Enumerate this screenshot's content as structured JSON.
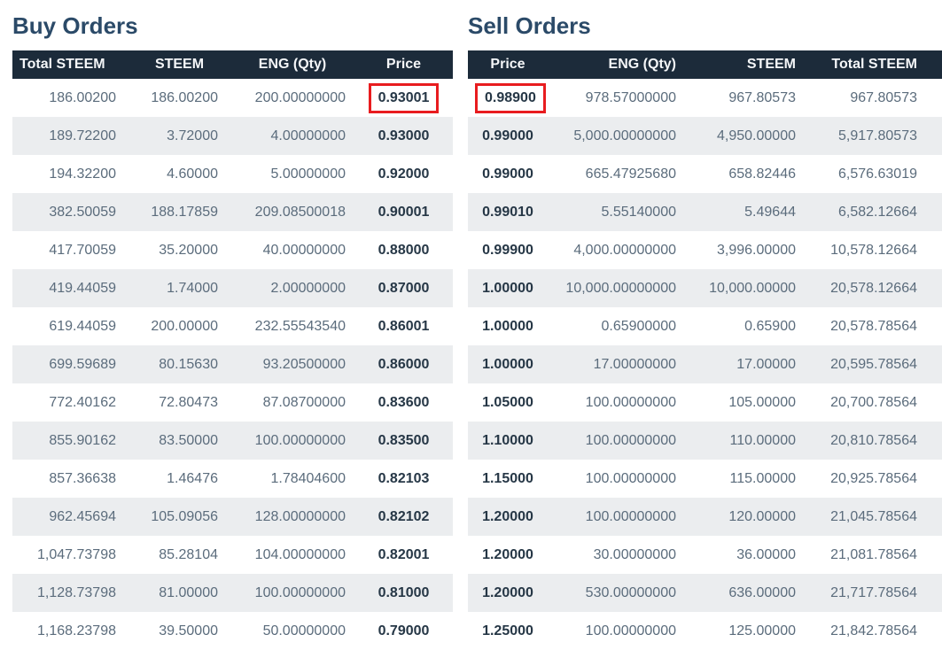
{
  "colors": {
    "header_bg": "#1c2b3a",
    "header_text": "#f4f6f8",
    "stripe_bg": "#ebedef",
    "value_text": "#5b6c7c",
    "price_text": "#263746",
    "title_text": "#2b4a68",
    "highlight_red": "#e81c1f"
  },
  "buy": {
    "title": "Buy Orders",
    "columns": [
      "Total STEEM",
      "STEEM",
      "ENG (Qty)",
      "Price"
    ],
    "highlight": {
      "row": 0,
      "col": 3
    },
    "rows": [
      [
        "186.00200",
        "186.00200",
        "200.00000000",
        "0.93001"
      ],
      [
        "189.72200",
        "3.72000",
        "4.00000000",
        "0.93000"
      ],
      [
        "194.32200",
        "4.60000",
        "5.00000000",
        "0.92000"
      ],
      [
        "382.50059",
        "188.17859",
        "209.08500018",
        "0.90001"
      ],
      [
        "417.70059",
        "35.20000",
        "40.00000000",
        "0.88000"
      ],
      [
        "419.44059",
        "1.74000",
        "2.00000000",
        "0.87000"
      ],
      [
        "619.44059",
        "200.00000",
        "232.55543540",
        "0.86001"
      ],
      [
        "699.59689",
        "80.15630",
        "93.20500000",
        "0.86000"
      ],
      [
        "772.40162",
        "72.80473",
        "87.08700000",
        "0.83600"
      ],
      [
        "855.90162",
        "83.50000",
        "100.00000000",
        "0.83500"
      ],
      [
        "857.36638",
        "1.46476",
        "1.78404600",
        "0.82103"
      ],
      [
        "962.45694",
        "105.09056",
        "128.00000000",
        "0.82102"
      ],
      [
        "1,047.73798",
        "85.28104",
        "104.00000000",
        "0.82001"
      ],
      [
        "1,128.73798",
        "81.00000",
        "100.00000000",
        "0.81000"
      ],
      [
        "1,168.23798",
        "39.50000",
        "50.00000000",
        "0.79000"
      ]
    ]
  },
  "sell": {
    "title": "Sell Orders",
    "columns": [
      "Price",
      "ENG (Qty)",
      "STEEM",
      "Total STEEM"
    ],
    "highlight": {
      "row": 0,
      "col": 0
    },
    "rows": [
      [
        "0.98900",
        "978.57000000",
        "967.80573",
        "967.80573"
      ],
      [
        "0.99000",
        "5,000.00000000",
        "4,950.00000",
        "5,917.80573"
      ],
      [
        "0.99000",
        "665.47925680",
        "658.82446",
        "6,576.63019"
      ],
      [
        "0.99010",
        "5.55140000",
        "5.49644",
        "6,582.12664"
      ],
      [
        "0.99900",
        "4,000.00000000",
        "3,996.00000",
        "10,578.12664"
      ],
      [
        "1.00000",
        "10,000.00000000",
        "10,000.00000",
        "20,578.12664"
      ],
      [
        "1.00000",
        "0.65900000",
        "0.65900",
        "20,578.78564"
      ],
      [
        "1.00000",
        "17.00000000",
        "17.00000",
        "20,595.78564"
      ],
      [
        "1.05000",
        "100.00000000",
        "105.00000",
        "20,700.78564"
      ],
      [
        "1.10000",
        "100.00000000",
        "110.00000",
        "20,810.78564"
      ],
      [
        "1.15000",
        "100.00000000",
        "115.00000",
        "20,925.78564"
      ],
      [
        "1.20000",
        "100.00000000",
        "120.00000",
        "21,045.78564"
      ],
      [
        "1.20000",
        "30.00000000",
        "36.00000",
        "21,081.78564"
      ],
      [
        "1.20000",
        "530.00000000",
        "636.00000",
        "21,717.78564"
      ],
      [
        "1.25000",
        "100.00000000",
        "125.00000",
        "21,842.78564"
      ]
    ]
  }
}
